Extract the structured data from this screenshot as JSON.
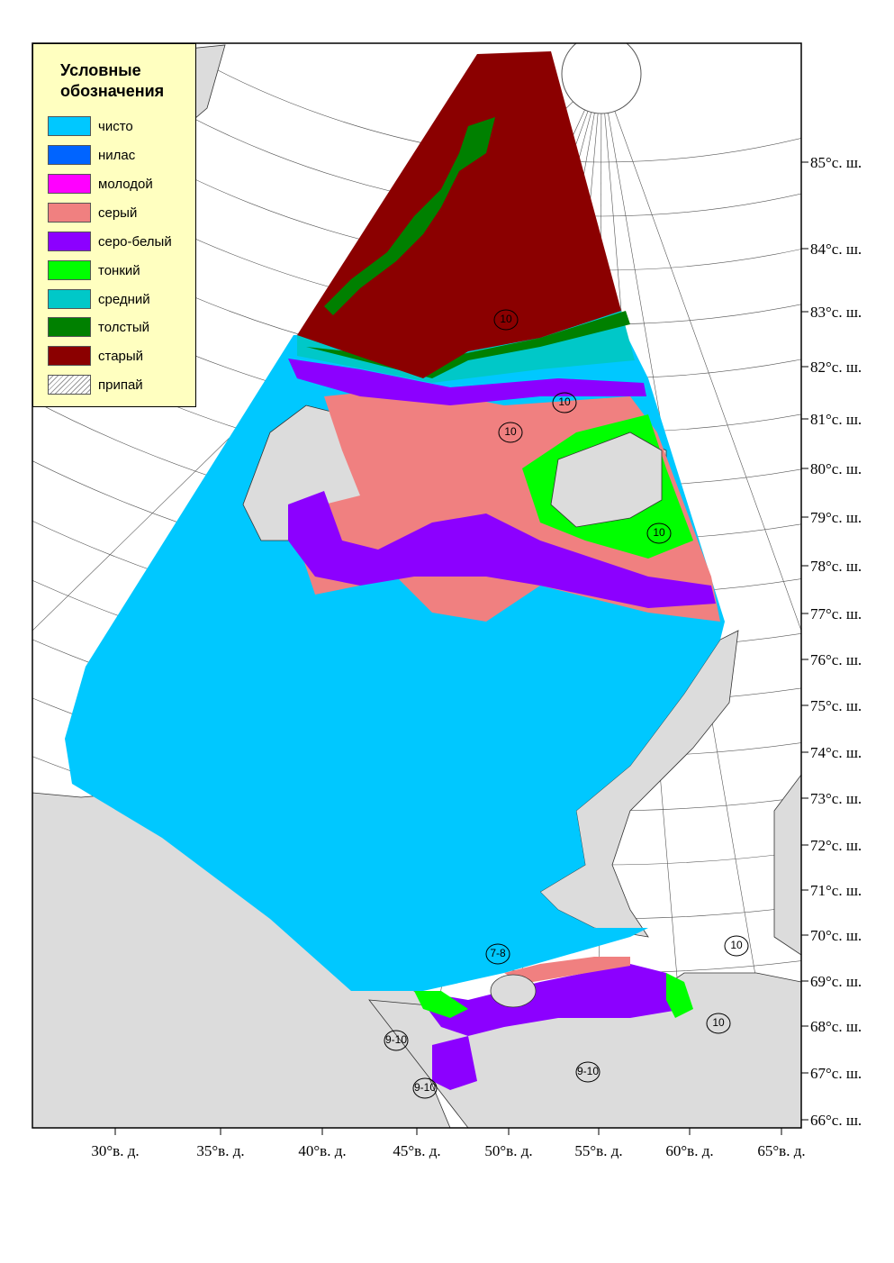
{
  "legend": {
    "title": "Условные обозначения",
    "items": [
      {
        "label": "чисто",
        "color": "#00c8ff"
      },
      {
        "label": "нилас",
        "color": "#0064ff"
      },
      {
        "label": "молодой",
        "color": "#ff00ff"
      },
      {
        "label": "серый",
        "color": "#f08080"
      },
      {
        "label": "серо-белый",
        "color": "#8c00ff"
      },
      {
        "label": "тонкий",
        "color": "#00ff00"
      },
      {
        "label": "средний",
        "color": "#00c8c8"
      },
      {
        "label": "толстый",
        "color": "#008000"
      },
      {
        "label": "старый",
        "color": "#8b0000"
      },
      {
        "label": "припай"
      }
    ]
  },
  "lat_labels": [
    "85°с. ш.",
    "84°с. ш.",
    "83°с. ш.",
    "82°с. ш.",
    "81°с. ш.",
    "80°с. ш.",
    "79°с. ш.",
    "78°с. ш.",
    "77°с. ш.",
    "76°с. ш.",
    "75°с. ш.",
    "74°с. ш.",
    "73°с. ш.",
    "72°с. ш.",
    "71°с. ш.",
    "70°с. ш.",
    "69°с. ш.",
    "68°с. ш.",
    "67°с. ш.",
    "66°с. ш."
  ],
  "lon_labels": [
    "30°в. д.",
    "35°в. д.",
    "40°в. д.",
    "45°в. д.",
    "50°в. д.",
    "55°в. д.",
    "60°в. д.",
    "65°в. д."
  ],
  "ice_labels": [
    "10",
    "10",
    "10",
    "10",
    "10",
    "10",
    "7-8",
    "9-10",
    "9-10",
    "9-10"
  ]
}
